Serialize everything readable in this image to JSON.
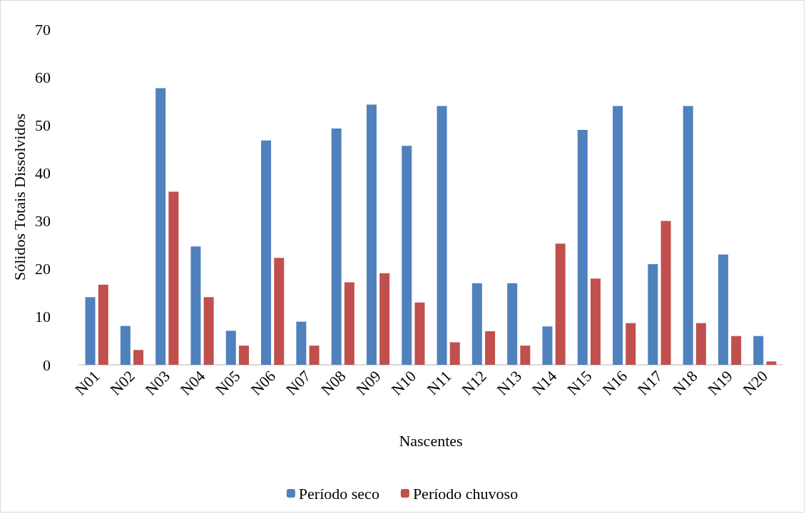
{
  "chart_data": {
    "type": "bar",
    "xlabel": "Nascentes",
    "ylabel": "Sólidos Totais Dissolvidos",
    "categories": [
      "N01",
      "N02",
      "N03",
      "N04",
      "N05",
      "N06",
      "N07",
      "N08",
      "N09",
      "N10",
      "N11",
      "N12",
      "N13",
      "N14",
      "N15",
      "N16",
      "N17",
      "N18",
      "N19",
      "N20"
    ],
    "series": [
      {
        "name": "Período seco",
        "color": "#4f81bd",
        "values": [
          14.1,
          8.1,
          57.7,
          24.7,
          7.1,
          46.8,
          9,
          49.3,
          54.3,
          45.7,
          54,
          17,
          17,
          8,
          49,
          54,
          21,
          54,
          23,
          6
        ]
      },
      {
        "name": "Período chuvoso",
        "color": "#c0504d",
        "values": [
          16.7,
          3.1,
          36.1,
          14.1,
          4,
          22.3,
          4,
          17.2,
          19.1,
          13,
          4.7,
          7,
          4,
          25.3,
          18,
          8.7,
          30,
          8.7,
          6,
          0.7
        ]
      }
    ],
    "ylim": [
      0,
      70
    ],
    "yticks": [
      0,
      10,
      20,
      30,
      40,
      50,
      60,
      70
    ],
    "grid": false,
    "legend": "bottom"
  }
}
